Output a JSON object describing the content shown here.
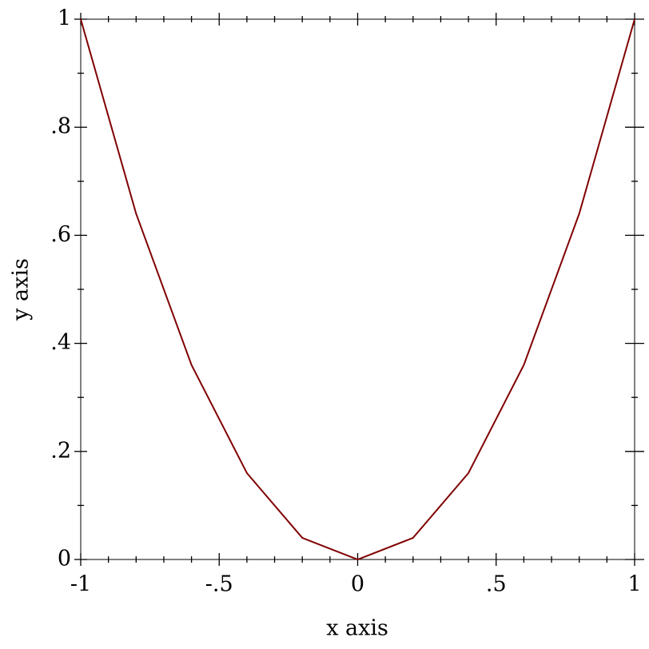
{
  "chart_data": {
    "type": "line",
    "xlabel": "x axis",
    "ylabel": "y axis",
    "x": [
      -1,
      -0.8,
      -0.6,
      -0.4,
      -0.2,
      0,
      0.2,
      0.4,
      0.6,
      0.8,
      1
    ],
    "series": [
      {
        "color": "#800000",
        "values": [
          1,
          0.64,
          0.36,
          0.16,
          0.04,
          0,
          0.04,
          0.16,
          0.36,
          0.64,
          1
        ]
      }
    ],
    "xlim": [
      -1,
      1
    ],
    "ylim": [
      0,
      1
    ],
    "xticks": [
      -1,
      {
        "value": -0.5,
        "label": "-.5"
      },
      0,
      {
        "value": 0.5,
        "label": ".5"
      },
      1
    ],
    "yticks": [
      0,
      {
        "value": 0.2,
        "label": ".2"
      },
      {
        "value": 0.4,
        "label": ".4"
      },
      {
        "value": 0.6,
        "label": ".6"
      },
      {
        "value": 0.8,
        "label": ".8"
      },
      1
    ],
    "xminorticks": [
      -0.9,
      -0.8,
      -0.7,
      -0.6,
      -0.4,
      -0.3,
      -0.2,
      -0.1,
      0.1,
      0.2,
      0.3,
      0.4,
      0.6,
      0.7,
      0.8,
      0.9
    ],
    "yminorticks": [
      0.1,
      0.3,
      0.5,
      0.7,
      0.9
    ]
  }
}
